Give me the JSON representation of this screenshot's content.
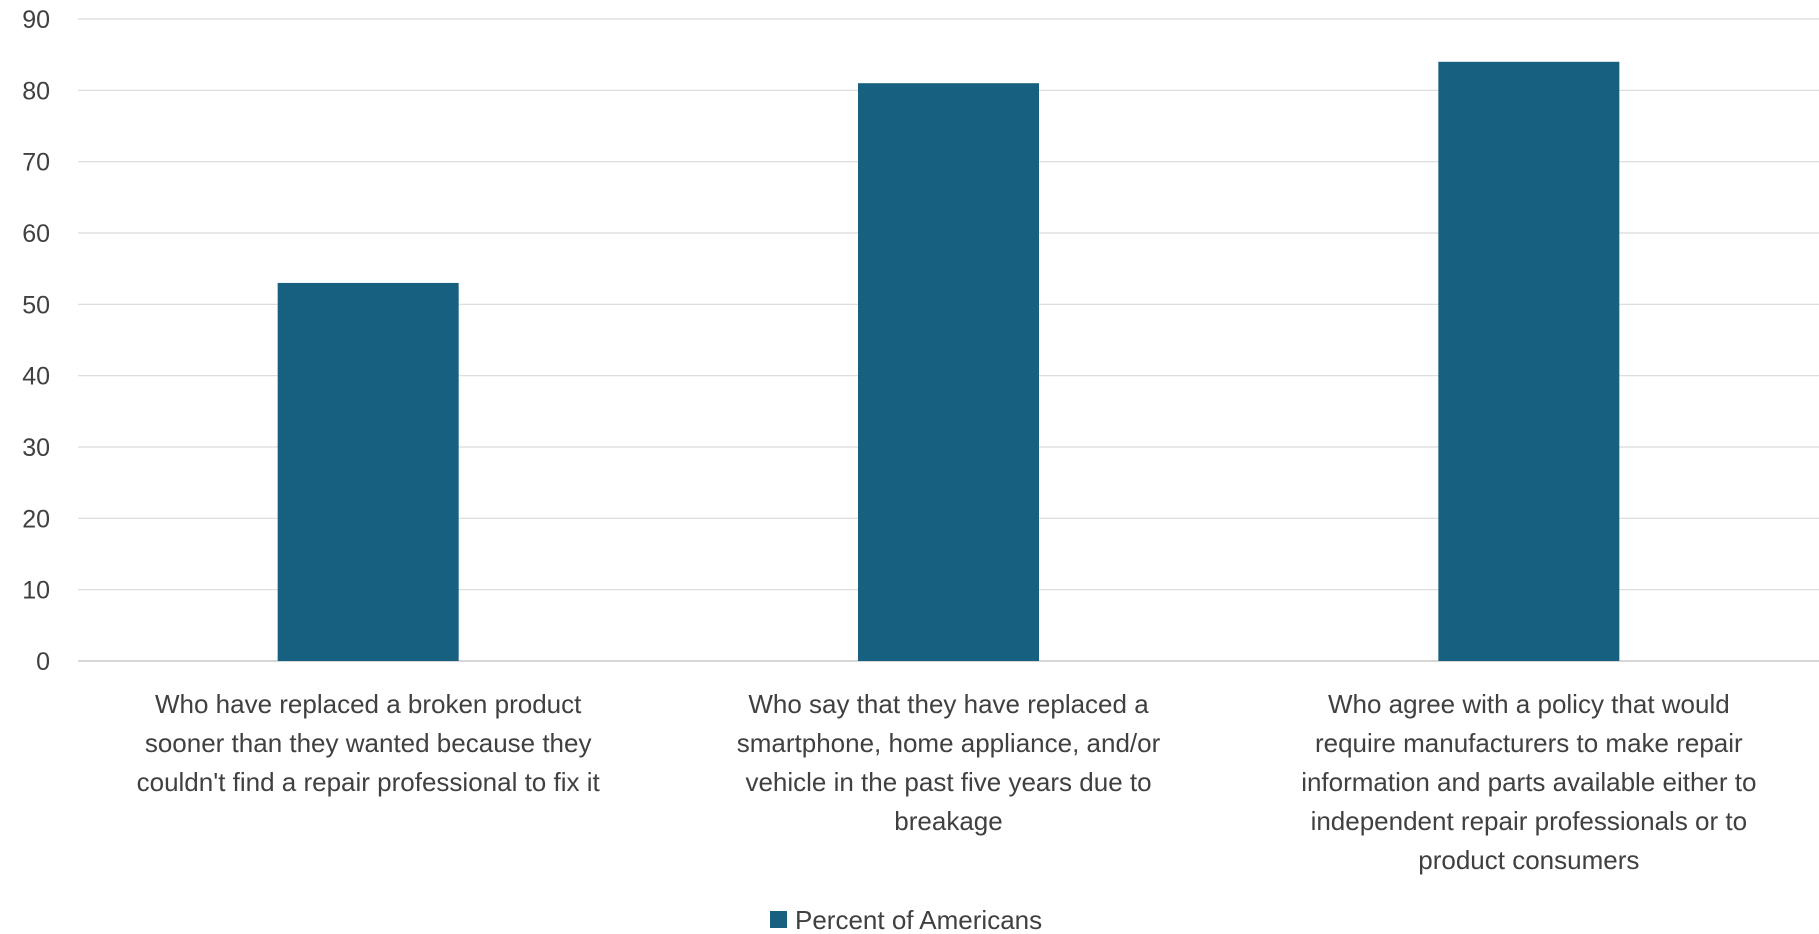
{
  "chart_data": {
    "type": "bar",
    "categories": [
      "Who have replaced a broken product sooner than they wanted because they couldn't find a repair professional to fix it",
      "Who say that they have replaced a smartphone, home appliance, and/or vehicle in the past five years due to breakage",
      "Who agree with a policy that would require manufacturers to make repair information and parts available either to independent repair professionals or to product consumers"
    ],
    "category_lines": [
      [
        "Who have replaced a broken product",
        "sooner than they wanted because they",
        "couldn't find a repair professional to fix it"
      ],
      [
        "Who say that they have replaced a",
        "smartphone, home appliance, and/or",
        "vehicle in the past five years due to",
        "breakage"
      ],
      [
        "Who agree with a policy that would",
        "require manufacturers to make repair",
        "information and parts available either to",
        "independent repair professionals or to",
        "product consumers"
      ]
    ],
    "series": [
      {
        "name": "Percent of Americans",
        "values": [
          53,
          81,
          84
        ],
        "color": "#17607f"
      }
    ],
    "yticks": [
      "0",
      "10",
      "20",
      "30",
      "40",
      "50",
      "60",
      "70",
      "80",
      "90"
    ],
    "ylim": [
      0,
      90
    ],
    "grid": true,
    "legend_position": "bottom-center",
    "title": "",
    "xlabel": "",
    "ylabel": ""
  }
}
